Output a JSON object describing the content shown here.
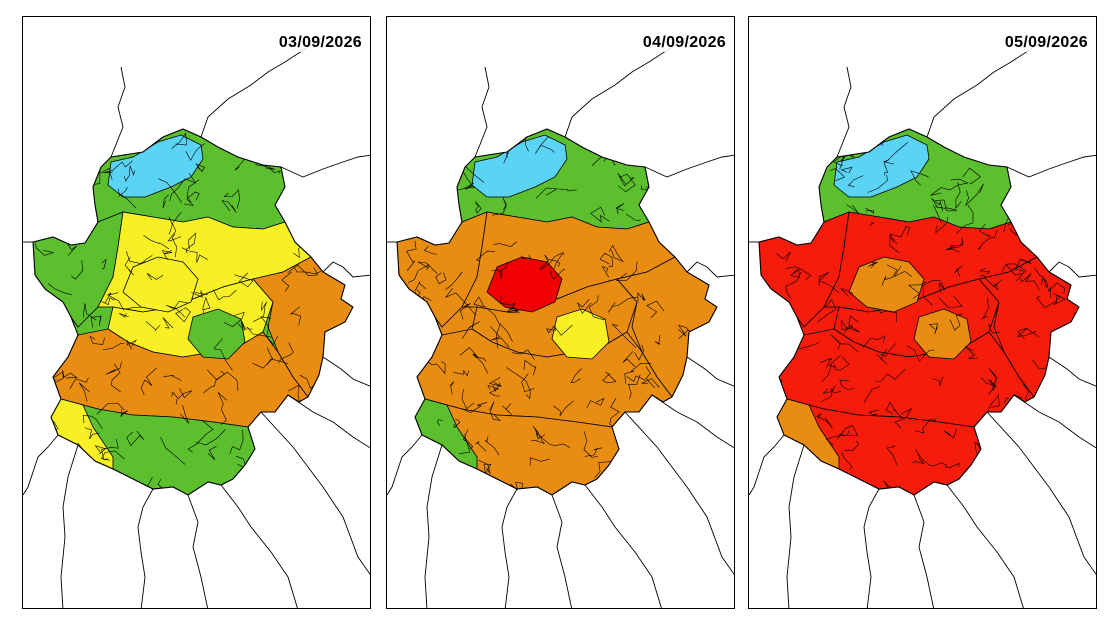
{
  "panels": [
    {
      "date": "03/09/2026",
      "colors": {
        "outer": "#5bbf2e",
        "north": "#5bbf2e",
        "north_spot": "#5bd3f5",
        "centre": "#f8f025",
        "upper_mid": "#f8f025",
        "lower": "#e98c12",
        "south": "#5bbf2e",
        "east": "#e98c12",
        "blob": "#f8f025",
        "blob2": "#5bbf2e",
        "rim": "#f8f025"
      }
    },
    {
      "date": "04/09/2026",
      "colors": {
        "outer": "#e98c12",
        "north": "#5bbf2e",
        "north_spot": "#5bd3f5",
        "centre": "#e98c12",
        "upper_mid": "#e98c12",
        "lower": "#e98c12",
        "south": "#e98c12",
        "east": "#e98c12",
        "blob": "#f00000",
        "blob2": "#f8f025",
        "rim": "#5bbf2e"
      }
    },
    {
      "date": "05/09/2026",
      "colors": {
        "outer": "#f51c0c",
        "north": "#5bbf2e",
        "north_spot": "#5bd3f5",
        "centre": "#f51c0c",
        "upper_mid": "#f51c0c",
        "lower": "#f51c0c",
        "south": "#f51c0c",
        "east": "#f51c0c",
        "blob": "#e98c12",
        "blob2": "#e98c12",
        "rim": "#e98c12"
      }
    }
  ],
  "legend_colors": {
    "blue": "#5bd3f5",
    "green": "#5bbf2e",
    "yellow": "#f8f025",
    "orange": "#e98c12",
    "red": "#f00000"
  }
}
